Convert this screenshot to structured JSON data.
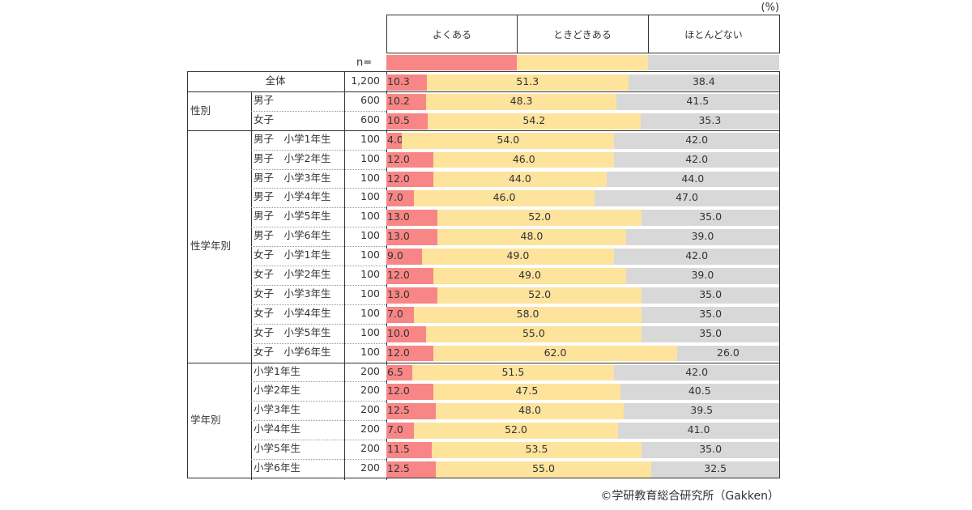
{
  "unit_label": "(%)",
  "n_label": "n=",
  "footer": "©学研教育総合研究所（Gakken）",
  "colors": {
    "often": "#f88686",
    "sometimes": "#fde39c",
    "rarely": "#d8d8d8"
  },
  "groups": [
    {
      "label": "",
      "rows": [
        0
      ]
    },
    {
      "label": "性別",
      "rows": [
        1,
        2
      ]
    },
    {
      "label": "性学年別",
      "rows": [
        3,
        4,
        5,
        6,
        7,
        8,
        9,
        10,
        11,
        12,
        13,
        14
      ]
    },
    {
      "label": "学年別",
      "rows": [
        15,
        16,
        17,
        18,
        19,
        20
      ]
    }
  ],
  "chart_data": {
    "type": "bar",
    "stacked": true,
    "orientation": "horizontal",
    "xlim": [
      0,
      100
    ],
    "legend": [
      "よくある",
      "ときどきある",
      "ほとんどない"
    ],
    "categories": [
      "全体",
      "男子",
      "女子",
      "男子　小学1年生",
      "男子　小学2年生",
      "男子　小学3年生",
      "男子　小学4年生",
      "男子　小学5年生",
      "男子　小学6年生",
      "女子　小学1年生",
      "女子　小学2年生",
      "女子　小学3年生",
      "女子　小学4年生",
      "女子　小学5年生",
      "女子　小学6年生",
      "小学1年生",
      "小学2年生",
      "小学3年生",
      "小学4年生",
      "小学5年生",
      "小学6年生"
    ],
    "n": [
      "1,200",
      "600",
      "600",
      "100",
      "100",
      "100",
      "100",
      "100",
      "100",
      "100",
      "100",
      "100",
      "100",
      "100",
      "100",
      "200",
      "200",
      "200",
      "200",
      "200",
      "200"
    ],
    "series": [
      {
        "name": "よくある",
        "values": [
          10.3,
          10.2,
          10.5,
          4.0,
          12.0,
          12.0,
          7.0,
          13.0,
          13.0,
          9.0,
          12.0,
          13.0,
          7.0,
          10.0,
          12.0,
          6.5,
          12.0,
          12.5,
          7.0,
          11.5,
          12.5
        ]
      },
      {
        "name": "ときどきある",
        "values": [
          51.3,
          48.3,
          54.2,
          54.0,
          46.0,
          44.0,
          46.0,
          52.0,
          48.0,
          49.0,
          49.0,
          52.0,
          58.0,
          55.0,
          62.0,
          51.5,
          47.5,
          48.0,
          52.0,
          53.5,
          55.0
        ]
      },
      {
        "name": "ほとんどない",
        "values": [
          38.4,
          41.5,
          35.3,
          42.0,
          42.0,
          44.0,
          47.0,
          35.0,
          39.0,
          42.0,
          39.0,
          35.0,
          35.0,
          35.0,
          26.0,
          42.0,
          40.5,
          39.5,
          41.0,
          35.0,
          32.5
        ]
      }
    ]
  }
}
